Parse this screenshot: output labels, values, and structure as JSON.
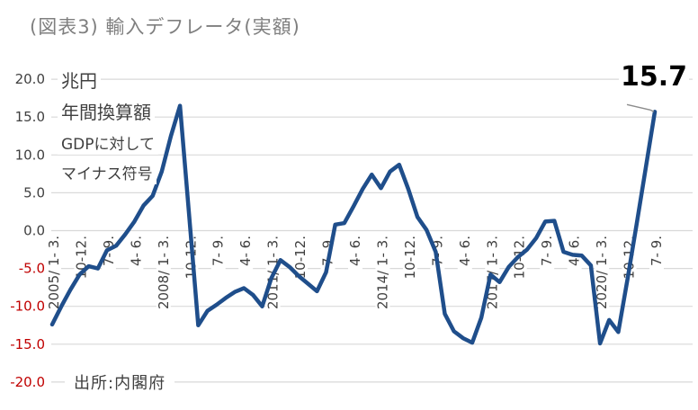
{
  "page": {
    "title": "(図表3) 輸入デフレータ(実額)"
  },
  "chart_data": {
    "type": "line",
    "title": "(図表3) 輸入デフレータ(実額)",
    "unit": "兆円",
    "annotations": [
      "兆円",
      "年間換算額",
      "GDPに対して",
      "マイナス符号"
    ],
    "end_point_label": "15.7",
    "source": "出所:内閣府",
    "frequency": "quarterly",
    "x_start": "2005/1-3",
    "x_end": "2021/7-9",
    "x_tick_every": 3,
    "x_tick_labels": [
      "2005/ 1- 3.",
      "10-12.",
      "7- 9.",
      "4- 6.",
      "2008/ 1- 3.",
      "10-12.",
      "7- 9.",
      "4- 6.",
      "2011/ 1- 3.",
      "10-12.",
      "7- 9.",
      "4- 6.",
      "2014/ 1- 3.",
      "10-12.",
      "7- 9.",
      "4- 6.",
      "2017/ 1- 3.",
      "10-12.",
      "7- 9.",
      "4- 6.",
      "2020/ 1- 3.",
      "10-12.",
      "7- 9."
    ],
    "y_ticks": [
      20.0,
      15.0,
      10.0,
      5.0,
      0.0,
      -5.0,
      -10.0,
      -15.0,
      -20.0
    ],
    "y_tick_labels": [
      "20.0",
      "15.0",
      "10.0",
      "5.0",
      "0.0",
      "-5.0",
      "-10.0",
      "-15.0",
      "-20.0"
    ],
    "ylim": [
      -20.0,
      20.0
    ],
    "grid": "horizontal-only",
    "legend": "none",
    "values": [
      -12.4,
      -10.0,
      -7.8,
      -5.8,
      -4.7,
      -5.0,
      -2.6,
      -2.0,
      -0.5,
      1.2,
      3.3,
      4.6,
      7.8,
      12.5,
      16.5,
      2.0,
      -12.5,
      -10.6,
      -9.8,
      -8.9,
      -8.1,
      -7.6,
      -8.5,
      -10.0,
      -6.3,
      -3.9,
      -4.8,
      -6.0,
      -7.0,
      -8.0,
      -5.5,
      0.8,
      1.0,
      3.2,
      5.5,
      7.4,
      5.6,
      7.8,
      8.7,
      5.5,
      1.8,
      0.1,
      -2.8,
      -11.0,
      -13.3,
      -14.2,
      -14.8,
      -11.5,
      -5.8,
      -6.8,
      -4.8,
      -3.5,
      -2.5,
      -1.0,
      1.2,
      1.3,
      -2.8,
      -3.2,
      -3.3,
      -4.6,
      -14.9,
      -11.8,
      -13.4,
      -6.5,
      0.8,
      8.2,
      15.7
    ],
    "colors": {
      "line": "#1F4E8B",
      "grid": "#D9D9D9",
      "tick_positive": "#404040",
      "tick_negative": "#C00000",
      "title": "#7F7F7F",
      "leader": "#8C8C8C",
      "end_label": "#000000"
    }
  }
}
